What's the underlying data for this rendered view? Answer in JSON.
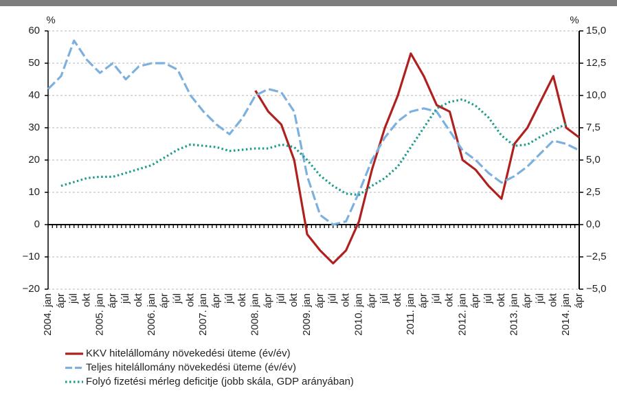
{
  "chart_data": {
    "type": "line",
    "y_label": "%",
    "y2_label": "%",
    "categories": [
      "2004. jan",
      "ápr",
      "júl",
      "okt",
      "2005. jan",
      "ápr",
      "júl",
      "okt",
      "2006. jan",
      "ápr",
      "júl",
      "okt",
      "2007. jan",
      "ápr",
      "júl",
      "okt",
      "2008. jan",
      "ápr",
      "júl",
      "okt",
      "2009. jan",
      "ápr",
      "júl",
      "okt",
      "2010. jan",
      "ápr",
      "júl",
      "okt",
      "2011. jan",
      "ápr",
      "júl",
      "okt",
      "2012. jan",
      "ápr",
      "júl",
      "okt",
      "2013. jan",
      "ápr",
      "júl",
      "okt",
      "2014. jan",
      "ápr"
    ],
    "series": [
      {
        "name": "KKV hitelállomány növekedési üteme (év/év)",
        "color": "#b0201e",
        "dash": "solid",
        "axis": "y",
        "values": [
          null,
          null,
          null,
          null,
          null,
          null,
          null,
          null,
          null,
          null,
          null,
          null,
          null,
          null,
          null,
          null,
          41.5,
          35,
          31,
          20,
          -3,
          -8,
          -12,
          -8,
          1,
          17,
          30,
          40,
          53,
          46,
          37,
          35,
          20,
          17,
          12,
          8,
          25,
          30,
          38,
          46,
          30,
          27
        ]
      },
      {
        "name": "Teljes hitelállomány növekedési üteme (év/év)",
        "color": "#7cb0de",
        "dash": "dashed",
        "axis": "y",
        "values": [
          42,
          46,
          57,
          51,
          47,
          50,
          45,
          49,
          50,
          50,
          48,
          40,
          35,
          31,
          28,
          33,
          40,
          42,
          41,
          35,
          15,
          3,
          0,
          1,
          10,
          20,
          27,
          32,
          35,
          36,
          35,
          29,
          23,
          20,
          16,
          13,
          15,
          18,
          22,
          26,
          25,
          23
        ]
      },
      {
        "name": "Folyó fizetési mérleg deficitje (jobb skála, GDP arányában)",
        "color": "#1e9c8c",
        "dash": "dotted",
        "axis": "y2",
        "values": [
          null,
          3.0,
          3.3,
          3.6,
          3.7,
          3.7,
          4.0,
          4.3,
          4.6,
          5.2,
          5.8,
          6.2,
          6.1,
          6.0,
          5.7,
          5.8,
          5.9,
          5.9,
          6.2,
          6.0,
          5.0,
          3.8,
          3.0,
          2.4,
          2.3,
          3.0,
          3.6,
          4.5,
          6.0,
          7.5,
          9.0,
          9.5,
          9.7,
          9.2,
          8.3,
          6.9,
          6.1,
          6.2,
          6.8,
          7.3,
          7.8,
          null
        ]
      }
    ],
    "ylim": [
      -20,
      60
    ],
    "yticks": [
      {
        "value": -20,
        "label": "−20"
      },
      {
        "value": -10,
        "label": "−10"
      },
      0,
      10,
      20,
      30,
      40,
      50,
      60
    ],
    "y2lim": [
      -5,
      15
    ],
    "y2ticks": [
      {
        "value": -5,
        "label": "−5,0"
      },
      {
        "value": -2.5,
        "label": "−2,5"
      },
      {
        "value": 0,
        "label": "0,0"
      },
      {
        "value": 2.5,
        "label": "2,5"
      },
      {
        "value": 5,
        "label": "5,0"
      },
      {
        "value": 7.5,
        "label": "7,5"
      },
      {
        "value": 10,
        "label": "10,0"
      },
      {
        "value": 12.5,
        "label": "12,5"
      },
      {
        "value": 15,
        "label": "15,0"
      }
    ],
    "grid": true
  }
}
